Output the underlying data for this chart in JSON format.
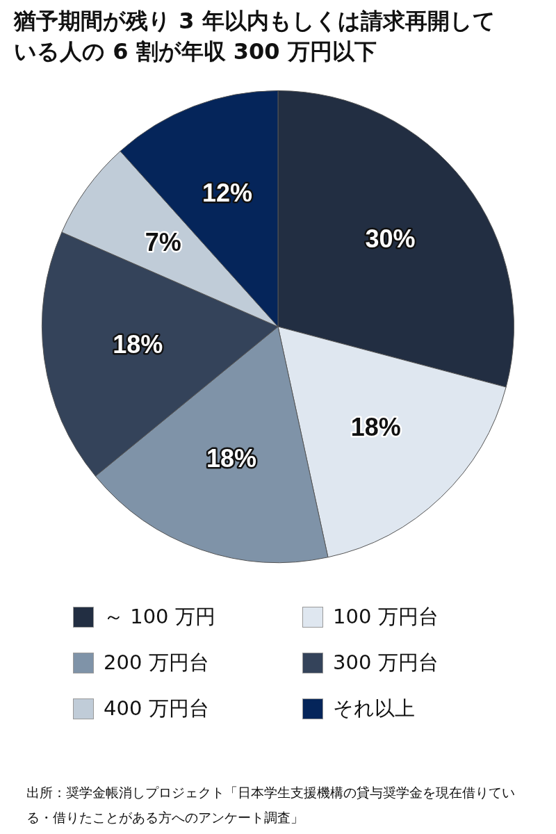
{
  "chart_data": {
    "type": "pie",
    "title": "猶予期間が残り 3 年以内もしくは請求再開している人の 6 割が年収 300 万円以下",
    "categories": [
      "～ 100 万円",
      "100 万円台",
      "200 万円台",
      "300 万円台",
      "400 万円台",
      "それ以上"
    ],
    "values": [
      30,
      18,
      18,
      18,
      7,
      12
    ],
    "colors": [
      "#222e42",
      "#dfe7f0",
      "#7f93a8",
      "#34435a",
      "#c0ccd8",
      "#05255a"
    ],
    "value_labels": [
      "30%",
      "18%",
      "18%",
      "18%",
      "7%",
      "12%"
    ],
    "legend": "bottom",
    "annotations": [
      "出所：奨学金帳消しプロジェクト「日本学生支援機構の貸与奨学金を現在借りている・借りたことがある方へのアンケート調査」"
    ]
  }
}
